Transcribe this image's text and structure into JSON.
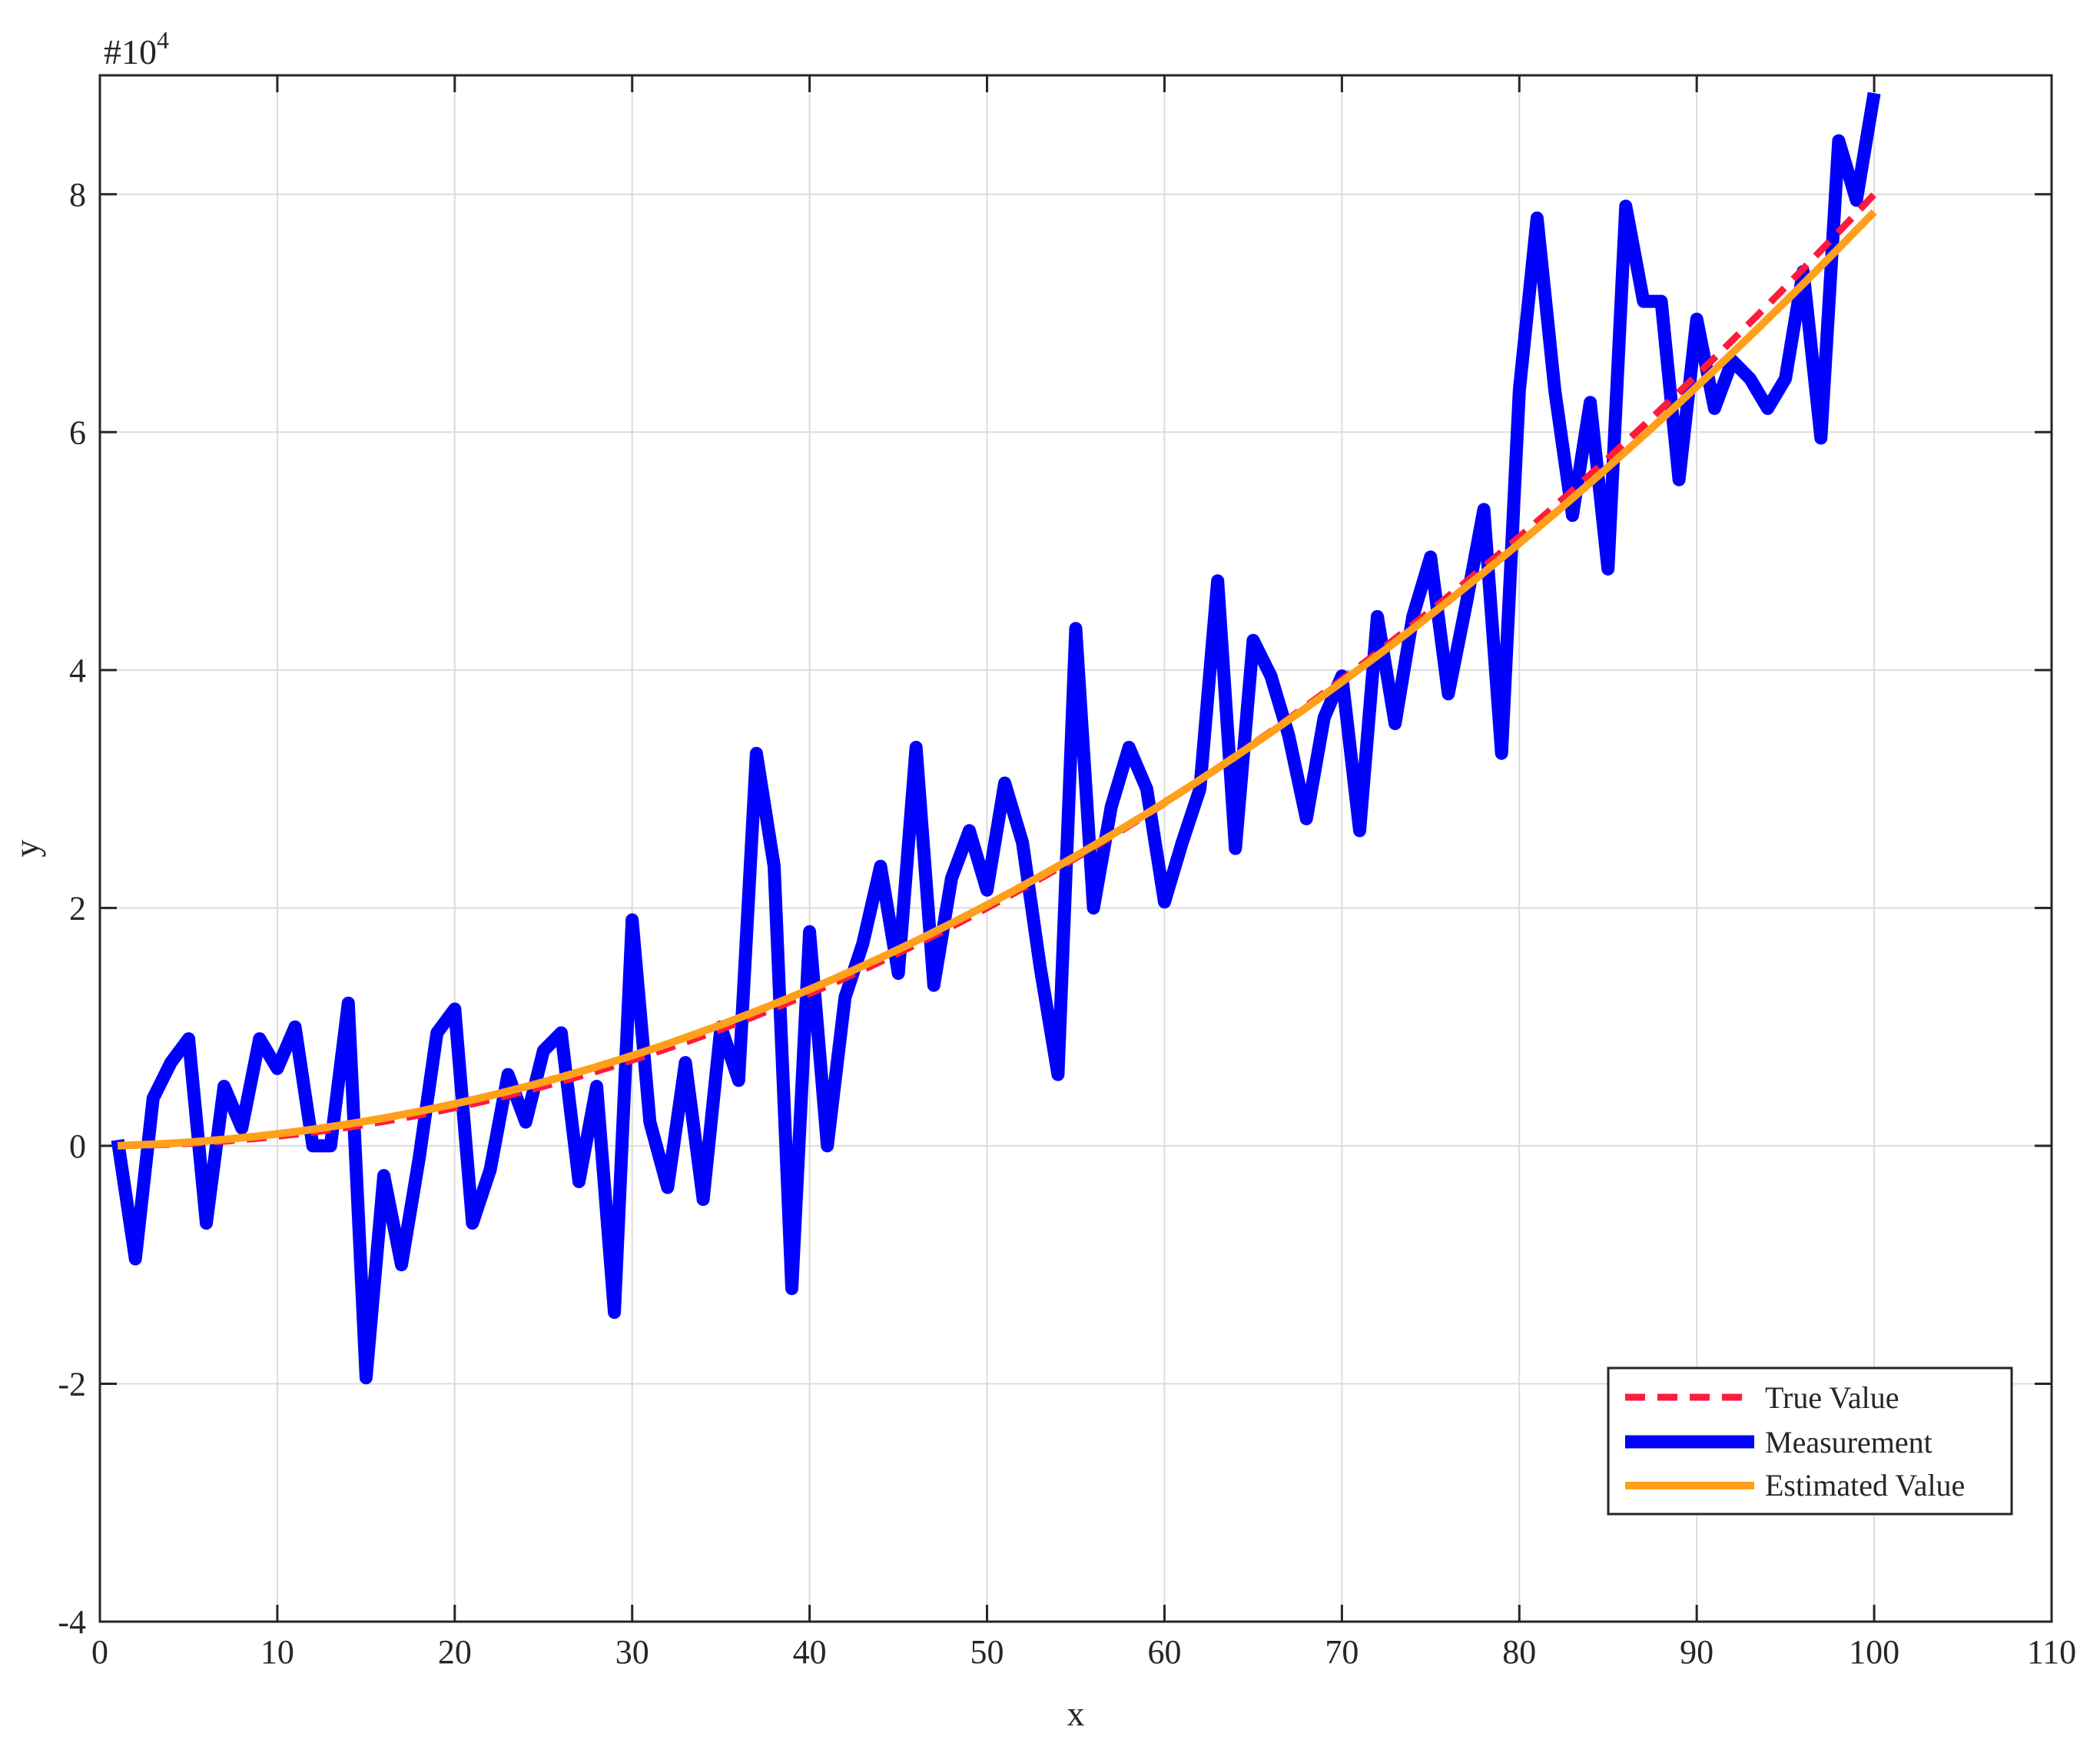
{
  "chart_data": {
    "type": "line",
    "title": "",
    "xlabel": "x",
    "ylabel": "y",
    "y_exponent_label": "#10",
    "y_exponent_power": "4",
    "y_multiplier": 10000,
    "xlim": [
      0,
      110
    ],
    "ylim": [
      -4,
      9
    ],
    "x_ticks": [
      0,
      10,
      20,
      30,
      40,
      50,
      60,
      70,
      80,
      90,
      100,
      110
    ],
    "x_tick_labels": [
      "0",
      "10",
      "20",
      "30",
      "40",
      "50",
      "60",
      "70",
      "80",
      "90",
      "100",
      "110"
    ],
    "y_ticks": [
      -4,
      -2,
      0,
      2,
      4,
      6,
      8
    ],
    "y_tick_labels": [
      "-4",
      "-2",
      "0",
      "2",
      "4",
      "6",
      "8"
    ],
    "grid": true,
    "legend_position": "bottom-right",
    "series": [
      {
        "name": "True Value",
        "style": "dashed",
        "color": "#ff1a3c",
        "x": [
          1,
          2,
          3,
          4,
          5,
          6,
          7,
          8,
          9,
          10,
          11,
          12,
          13,
          14,
          15,
          16,
          17,
          18,
          19,
          20,
          21,
          22,
          23,
          24,
          25,
          26,
          27,
          28,
          29,
          30,
          31,
          32,
          33,
          34,
          35,
          36,
          37,
          38,
          39,
          40,
          41,
          42,
          43,
          44,
          45,
          46,
          47,
          48,
          49,
          50,
          51,
          52,
          53,
          54,
          55,
          56,
          57,
          58,
          59,
          60,
          61,
          62,
          63,
          64,
          65,
          66,
          67,
          68,
          69,
          70,
          71,
          72,
          73,
          74,
          75,
          76,
          77,
          78,
          79,
          80,
          81,
          82,
          83,
          84,
          85,
          86,
          87,
          88,
          89,
          90,
          91,
          92,
          93,
          94,
          95,
          96,
          97,
          98,
          99,
          100
        ],
        "y": [
          0.0008,
          0.0032,
          0.0072,
          0.0128,
          0.02,
          0.0288,
          0.0392,
          0.0512,
          0.0648,
          0.08,
          0.0968,
          0.1152,
          0.1352,
          0.1568,
          0.18,
          0.2048,
          0.2312,
          0.2592,
          0.2888,
          0.32,
          0.3528,
          0.3872,
          0.4232,
          0.4608,
          0.5,
          0.5408,
          0.5832,
          0.6272,
          0.6728,
          0.72,
          0.7688,
          0.8192,
          0.8712,
          0.9248,
          0.98,
          1.0368,
          1.0952,
          1.1552,
          1.2168,
          1.28,
          1.3448,
          1.4112,
          1.4792,
          1.5488,
          1.62,
          1.6928,
          1.7672,
          1.8432,
          1.9208,
          2.0,
          2.0808,
          2.1632,
          2.2472,
          2.3328,
          2.42,
          2.5088,
          2.5992,
          2.6912,
          2.7848,
          2.88,
          2.9768,
          3.0752,
          3.1752,
          3.2768,
          3.38,
          3.4848,
          3.5912,
          3.6992,
          3.8088,
          3.92,
          4.0328,
          4.1472,
          4.2632,
          4.3808,
          4.5,
          4.6208,
          4.7432,
          4.8672,
          4.9928,
          5.12,
          5.2488,
          5.3792,
          5.5112,
          5.6448,
          5.78,
          5.9168,
          6.0552,
          6.1952,
          6.3368,
          6.48,
          6.6248,
          6.7712,
          6.9192,
          7.0688,
          7.22,
          7.3728,
          7.5272,
          7.6832,
          7.8408,
          8.0
        ]
      },
      {
        "name": "Measurement",
        "style": "solid",
        "color": "#0000ff",
        "x": [
          1,
          2,
          3,
          4,
          5,
          6,
          7,
          8,
          9,
          10,
          11,
          12,
          13,
          14,
          15,
          16,
          17,
          18,
          19,
          20,
          21,
          22,
          23,
          24,
          25,
          26,
          27,
          28,
          29,
          30,
          31,
          32,
          33,
          34,
          35,
          36,
          37,
          38,
          39,
          40,
          41,
          42,
          43,
          44,
          45,
          46,
          47,
          48,
          49,
          50,
          51,
          52,
          53,
          54,
          55,
          56,
          57,
          58,
          59,
          60,
          61,
          62,
          63,
          64,
          65,
          66,
          67,
          68,
          69,
          70,
          71,
          72,
          73,
          74,
          75,
          76,
          77,
          78,
          79,
          80,
          81,
          82,
          83,
          84,
          85,
          86,
          87,
          88,
          89,
          90,
          91,
          92,
          93,
          94,
          95,
          96,
          97,
          98,
          99,
          100
        ],
        "y": [
          0.05,
          -0.95,
          0.4,
          0.7,
          0.9,
          -0.65,
          0.5,
          0.15,
          0.9,
          0.65,
          1.0,
          0.0,
          0.0,
          1.2,
          -1.95,
          -0.25,
          -1.0,
          -0.1,
          0.95,
          1.15,
          -0.65,
          -0.2,
          0.6,
          0.2,
          0.8,
          0.95,
          -0.3,
          0.5,
          -1.4,
          1.9,
          0.2,
          -0.35,
          0.7,
          -0.45,
          1.0,
          0.55,
          3.3,
          2.35,
          -1.2,
          1.8,
          0.0,
          1.25,
          1.7,
          2.35,
          1.45,
          3.35,
          1.35,
          2.25,
          2.65,
          2.15,
          3.05,
          2.55,
          1.5,
          0.6,
          4.35,
          2.0,
          2.85,
          3.35,
          3.0,
          2.05,
          2.55,
          3.0,
          4.75,
          2.5,
          4.25,
          3.95,
          3.45,
          2.75,
          3.6,
          3.95,
          2.65,
          4.45,
          3.55,
          4.45,
          4.95,
          3.8,
          4.55,
          5.35,
          3.3,
          6.35,
          7.8,
          6.35,
          5.3,
          6.25,
          4.85,
          7.9,
          7.1,
          7.1,
          5.6,
          6.95,
          6.2,
          6.6,
          6.45,
          6.2,
          6.45,
          7.35,
          5.95,
          8.45,
          7.95,
          8.85
        ]
      },
      {
        "name": "Estimated Value",
        "style": "solid",
        "color": "#ff9f1a",
        "x": [
          1,
          2,
          3,
          4,
          5,
          6,
          7,
          8,
          9,
          10,
          11,
          12,
          13,
          14,
          15,
          16,
          17,
          18,
          19,
          20,
          21,
          22,
          23,
          24,
          25,
          26,
          27,
          28,
          29,
          30,
          31,
          32,
          33,
          34,
          35,
          36,
          37,
          38,
          39,
          40,
          41,
          42,
          43,
          44,
          45,
          46,
          47,
          48,
          49,
          50,
          51,
          52,
          53,
          54,
          55,
          56,
          57,
          58,
          59,
          60,
          61,
          62,
          63,
          64,
          65,
          66,
          67,
          68,
          69,
          70,
          71,
          72,
          73,
          74,
          75,
          76,
          77,
          78,
          79,
          80,
          81,
          82,
          83,
          84,
          85,
          86,
          87,
          88,
          89,
          90,
          91,
          92,
          93,
          94,
          95,
          96,
          97,
          98,
          99,
          100
        ],
        "y": [
          0.0,
          0.007,
          0.0133,
          0.0212,
          0.0305,
          0.0414,
          0.0538,
          0.0677,
          0.0831,
          0.1001,
          0.1186,
          0.1386,
          0.1601,
          0.1831,
          0.2077,
          0.2337,
          0.2613,
          0.2905,
          0.3211,
          0.3532,
          0.3869,
          0.4221,
          0.4589,
          0.4971,
          0.5369,
          0.5781,
          0.621,
          0.6653,
          0.7111,
          0.7585,
          0.8074,
          0.8578,
          0.9097,
          0.9632,
          1.0181,
          1.0746,
          1.1326,
          1.1922,
          1.2532,
          1.3158,
          1.3799,
          1.4455,
          1.5126,
          1.5813,
          1.6514,
          1.7231,
          1.7963,
          1.8711,
          1.9473,
          2.0251,
          2.1044,
          2.1852,
          2.2676,
          2.3514,
          2.4368,
          2.5237,
          2.6121,
          2.7021,
          2.7935,
          2.8865,
          2.981,
          3.0771,
          3.1746,
          3.2737,
          3.3743,
          3.4764,
          3.58,
          3.6851,
          3.7918,
          3.9,
          4.0097,
          4.1209,
          4.2337,
          4.348,
          4.4638,
          4.5811,
          4.6999,
          4.8203,
          4.9421,
          5.0655,
          5.1904,
          5.3169,
          5.4448,
          5.5743,
          5.7053,
          5.8378,
          5.9718,
          6.1073,
          6.2444,
          6.383,
          6.523,
          6.6646,
          6.8078,
          6.9524,
          7.0986,
          7.2462,
          7.3954,
          7.5462,
          7.6984,
          7.8521
        ]
      }
    ]
  }
}
